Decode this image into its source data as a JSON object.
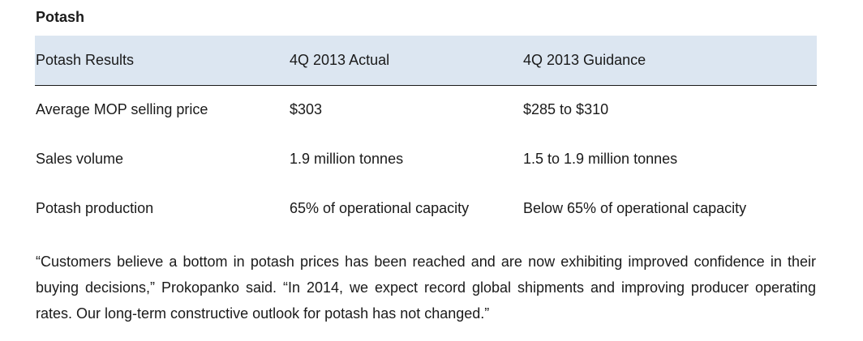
{
  "section": {
    "title": "Potash"
  },
  "table": {
    "headers": [
      "Potash Results",
      "4Q 2013 Actual",
      "4Q 2013 Guidance"
    ],
    "rows": [
      [
        "Average MOP selling price",
        "$303",
        "$285 to $310"
      ],
      [
        "Sales volume",
        "1.9 million tonnes",
        "1.5 to 1.9 million tonnes"
      ],
      [
        "Potash production",
        "65% of operational capacity",
        "Below 65% of operational capacity"
      ]
    ]
  },
  "quote": {
    "text": "“Customers believe a bottom in potash prices has been reached and are now exhibiting improved confidence in their buying decisions,” Prokopanko said. “In 2014, we expect record global shipments and improving producer operating rates. Our long-term constructive outlook for potash has not changed.”"
  },
  "colors": {
    "header_background": "#dce6f1",
    "text": "#1a1a1a"
  }
}
